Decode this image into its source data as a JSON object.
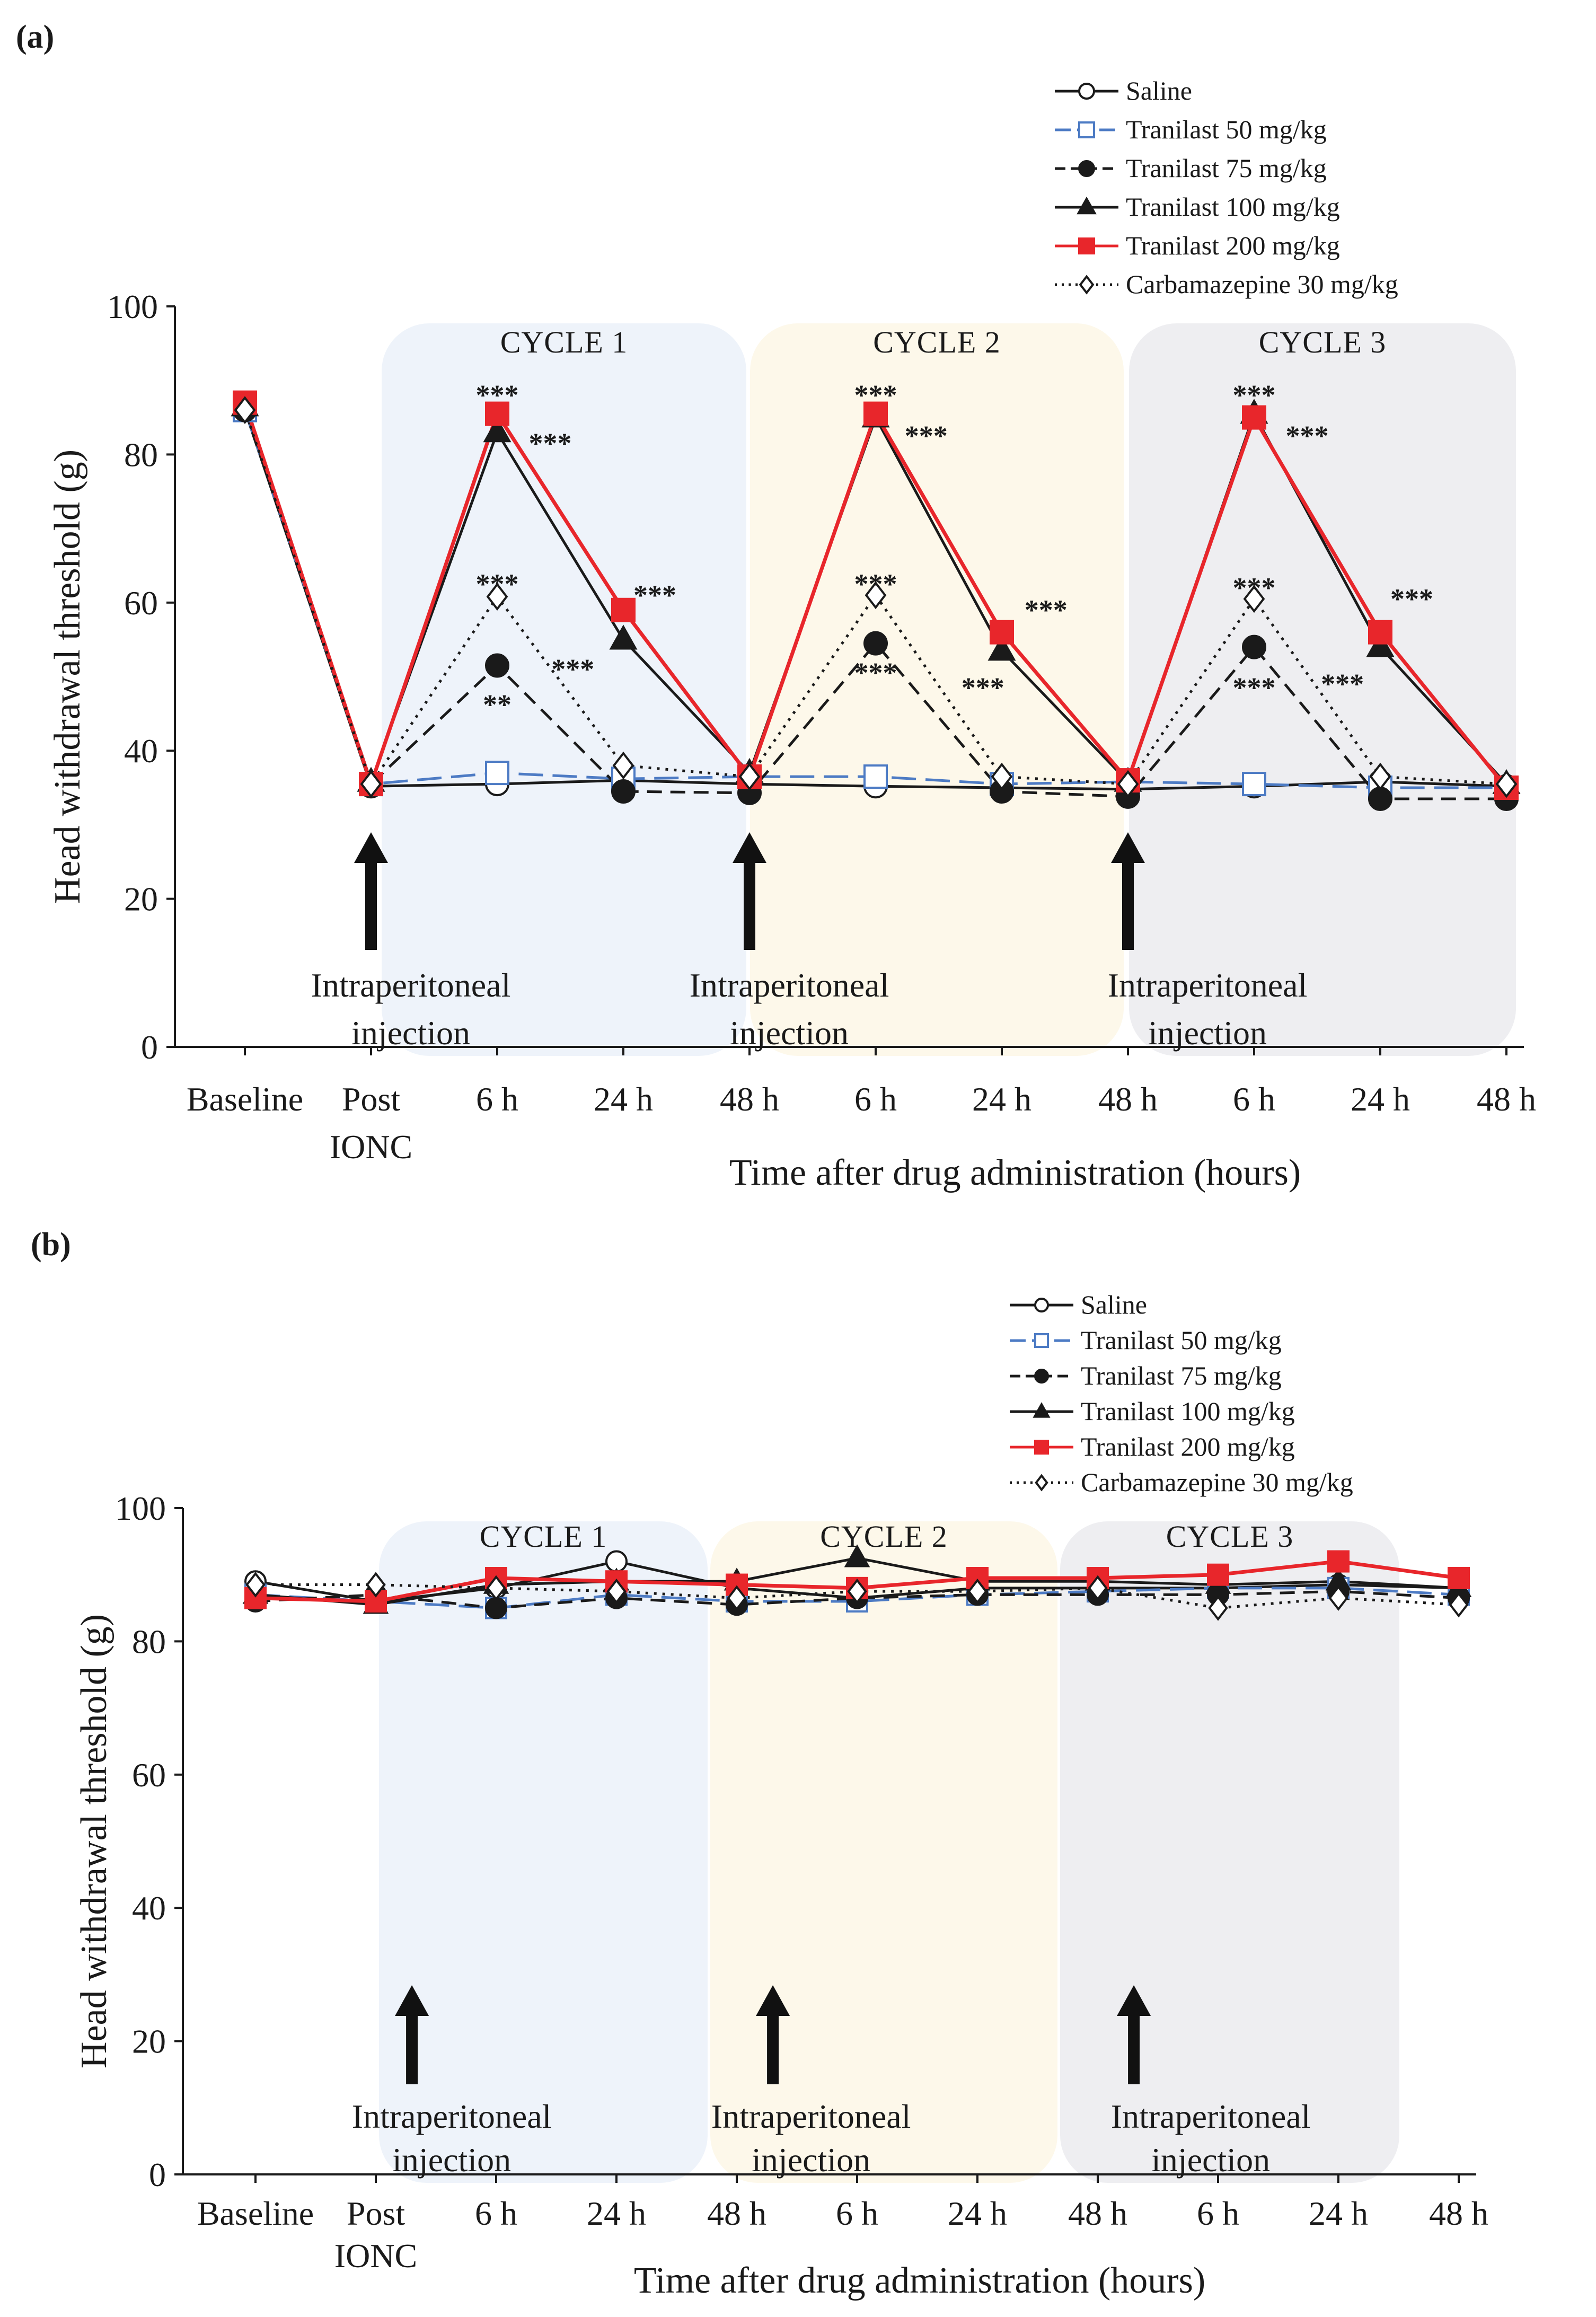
{
  "colors": {
    "cycle1": "#eef3fa",
    "cycle2": "#fdf8ea",
    "cycle3": "#eeeef1",
    "red": "#e8262b",
    "blue": "#4d7bc4",
    "black": "#1a1a1a"
  },
  "chart_data": [
    {
      "type": "line",
      "panel": "(a)",
      "title": "",
      "xlabel": "Time after drug administration  (hours)",
      "ylabel": "Head withdrawal threshold (g)",
      "ylim": [
        0,
        100
      ],
      "yticks": [
        0,
        20,
        40,
        60,
        80,
        100
      ],
      "categories": [
        "Baseline",
        "Post IONC",
        "6 h",
        "24 h",
        "48 h",
        "6 h",
        "24 h",
        "48 h",
        "6 h",
        "24 h",
        "48 h"
      ],
      "category_labels": [
        [
          "Baseline"
        ],
        [
          "Post",
          "IONC"
        ],
        [
          "6 h"
        ],
        [
          "24 h"
        ],
        [
          "48 h"
        ],
        [
          "6 h"
        ],
        [
          "24 h"
        ],
        [
          "48 h"
        ],
        [
          "6 h"
        ],
        [
          "24 h"
        ],
        [
          "48 h"
        ]
      ],
      "cycles": [
        {
          "label": "CYCLE 1",
          "color": "#eef3fa"
        },
        {
          "label": "CYCLE 2",
          "color": "#fdf8ea"
        },
        {
          "label": "CYCLE 3",
          "color": "#eeeef1"
        }
      ],
      "injection_label": [
        "Intraperitoneal",
        "injection"
      ],
      "injection_x": [
        1,
        4,
        7
      ],
      "legend_position": "top-right",
      "series": [
        {
          "name": "Saline",
          "color": "#1a1a1a",
          "dash": "solid",
          "marker": "circle-open",
          "values": [
            86,
            35.2,
            35.5,
            36,
            35.5,
            35.2,
            35,
            34.8,
            35.2,
            35.8,
            35.2
          ]
        },
        {
          "name": "Tranilast 50 mg/kg",
          "color": "#4d7bc4",
          "dash": "longdash",
          "marker": "square-open",
          "values": [
            86,
            35.5,
            37,
            36.2,
            36.5,
            36.5,
            35.5,
            35.8,
            35.5,
            35,
            35
          ]
        },
        {
          "name": "Tranilast 75 mg/kg",
          "color": "#1a1a1a",
          "dash": "dash",
          "marker": "circle-filled",
          "values": [
            86,
            35.5,
            51.5,
            34.5,
            34.3,
            54.5,
            34.5,
            33.8,
            54,
            33.5,
            33.5
          ]
        },
        {
          "name": "Tranilast 100 mg/kg",
          "color": "#1a1a1a",
          "dash": "solid",
          "marker": "triangle-filled",
          "values": [
            86.5,
            35.8,
            83,
            55,
            37,
            85,
            53.5,
            35.8,
            85.5,
            54,
            35.5
          ]
        },
        {
          "name": "Tranilast 200 mg/kg",
          "color": "#e8262b",
          "dash": "solid",
          "marker": "square-filled",
          "values": [
            87,
            35.5,
            85.5,
            59,
            36.5,
            85.5,
            56,
            36,
            85,
            56,
            35
          ]
        },
        {
          "name": "Carbamazepine 30 mg/kg",
          "color": "#1a1a1a",
          "dash": "dot",
          "marker": "diamond-open",
          "values": [
            86,
            35.5,
            60.8,
            38,
            36.5,
            61,
            36.5,
            35.5,
            60.5,
            36.5,
            35.5
          ]
        }
      ],
      "annotations": [
        {
          "x": 2,
          "y": 88,
          "text": "***"
        },
        {
          "x": 2.42,
          "y": 81.5,
          "text": "***"
        },
        {
          "x": 2,
          "y": 62.5,
          "text": "***"
        },
        {
          "x": 2.6,
          "y": 51,
          "text": "***"
        },
        {
          "x": 2,
          "y": 46.2,
          "text": "**"
        },
        {
          "x": 3.25,
          "y": 61,
          "text": "***"
        },
        {
          "x": 5,
          "y": 88,
          "text": "***"
        },
        {
          "x": 5.4,
          "y": 82.5,
          "text": "***"
        },
        {
          "x": 5,
          "y": 62.5,
          "text": "***"
        },
        {
          "x": 5,
          "y": 50.5,
          "text": "***"
        },
        {
          "x": 5.85,
          "y": 48.5,
          "text": "***"
        },
        {
          "x": 6.35,
          "y": 59,
          "text": "***"
        },
        {
          "x": 8,
          "y": 88,
          "text": "***"
        },
        {
          "x": 8.42,
          "y": 82.5,
          "text": "***"
        },
        {
          "x": 8,
          "y": 62,
          "text": "***"
        },
        {
          "x": 8,
          "y": 48.5,
          "text": "***"
        },
        {
          "x": 8.7,
          "y": 49,
          "text": "***"
        },
        {
          "x": 9.25,
          "y": 60.5,
          "text": "***"
        }
      ]
    },
    {
      "type": "line",
      "panel": "(b)",
      "title": "",
      "xlabel": "Time after drug administration  (hours)",
      "ylabel": "Head withdrawal threshold (g)",
      "ylim": [
        0,
        100
      ],
      "yticks": [
        0,
        20,
        40,
        60,
        80,
        100
      ],
      "categories": [
        "Baseline",
        "Post IONC",
        "6 h",
        "24 h",
        "48 h",
        "6 h",
        "24 h",
        "48 h",
        "6 h",
        "24 h",
        "48 h"
      ],
      "category_labels": [
        [
          "Baseline"
        ],
        [
          "Post",
          "IONC"
        ],
        [
          "6 h"
        ],
        [
          "24 h"
        ],
        [
          "48 h"
        ],
        [
          "6 h"
        ],
        [
          "24 h"
        ],
        [
          "48 h"
        ],
        [
          "6 h"
        ],
        [
          "24 h"
        ],
        [
          "48 h"
        ]
      ],
      "cycles": [
        {
          "label": "CYCLE 1",
          "color": "#eef3fa"
        },
        {
          "label": "CYCLE 2",
          "color": "#fdf8ea"
        },
        {
          "label": "CYCLE 3",
          "color": "#eeeef1"
        }
      ],
      "injection_label": [
        "Intraperitoneal",
        "injection"
      ],
      "injection_x": [
        1.3,
        4.3,
        7.3
      ],
      "legend_position": "top-right",
      "series": [
        {
          "name": "Saline",
          "color": "#1a1a1a",
          "dash": "solid",
          "marker": "circle-open",
          "values": [
            89,
            86,
            88,
            92,
            88,
            86.5,
            88,
            88,
            88,
            88.5,
            88
          ]
        },
        {
          "name": "Tranilast 50 mg/kg",
          "color": "#4d7bc4",
          "dash": "longdash",
          "marker": "square-open",
          "values": [
            87,
            86,
            85,
            87,
            86,
            86,
            87,
            87.5,
            88,
            88,
            87
          ]
        },
        {
          "name": "Tranilast 75 mg/kg",
          "color": "#1a1a1a",
          "dash": "dash",
          "marker": "circle-filled",
          "values": [
            86,
            87,
            85,
            86.5,
            85.5,
            86.5,
            87,
            87,
            87,
            87.5,
            86.5
          ]
        },
        {
          "name": "Tranilast 100 mg/kg",
          "color": "#1a1a1a",
          "dash": "solid",
          "marker": "triangle-filled",
          "values": [
            87,
            85.5,
            88.5,
            89,
            89,
            92.5,
            89,
            89,
            88.5,
            89,
            88
          ]
        },
        {
          "name": "Tranilast 200 mg/kg",
          "color": "#e8262b",
          "dash": "solid",
          "marker": "square-filled",
          "values": [
            86.5,
            86,
            89.5,
            89,
            88.5,
            88,
            89.5,
            89.5,
            90,
            92,
            89.5
          ]
        },
        {
          "name": "Carbamazepine 30 mg/kg",
          "color": "#1a1a1a",
          "dash": "dot",
          "marker": "diamond-open",
          "values": [
            88.5,
            88.5,
            88,
            87.5,
            86.5,
            87.5,
            87.5,
            88,
            85,
            86.5,
            85.5
          ]
        }
      ],
      "annotations": []
    }
  ]
}
